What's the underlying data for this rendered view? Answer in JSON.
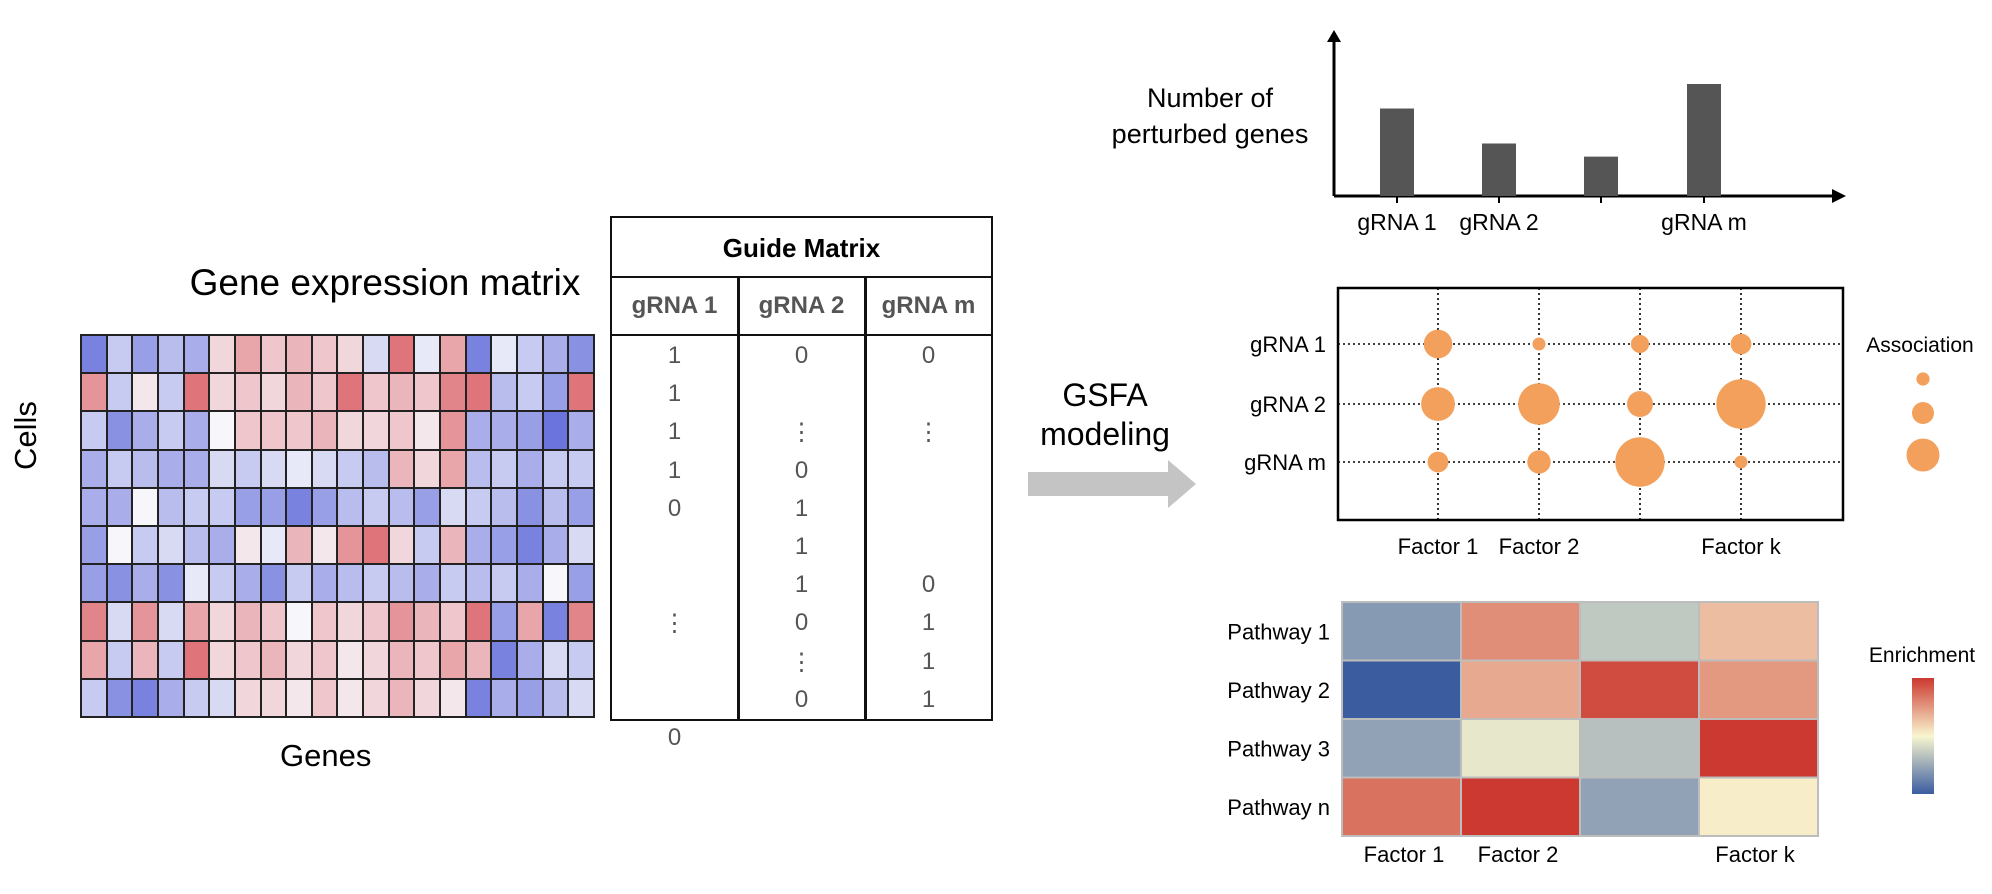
{
  "gene_expression": {
    "title": "Gene expression matrix",
    "row_label": "Cells",
    "col_label": "Genes",
    "rows": 10,
    "cols": 20,
    "colors": {
      "low": "#5a65d8",
      "mid": "#f7f7fb",
      "high": "#d9545a"
    },
    "values": [
      [
        -0.8,
        -0.3,
        -0.6,
        -0.4,
        -0.5,
        0.2,
        0.5,
        0.3,
        0.4,
        0.3,
        0.2,
        -0.2,
        0.8,
        -0.1,
        0.5,
        -0.8,
        -0.1,
        -0.3,
        -0.5,
        -0.7
      ],
      [
        0.6,
        -0.3,
        0.1,
        -0.3,
        0.8,
        0.2,
        0.3,
        0.2,
        0.4,
        0.3,
        0.8,
        0.3,
        0.4,
        0.3,
        0.7,
        0.8,
        -0.4,
        -0.3,
        -0.6,
        0.8
      ],
      [
        -0.3,
        -0.7,
        -0.5,
        -0.3,
        -0.5,
        0.0,
        0.3,
        0.3,
        0.3,
        0.4,
        0.2,
        0.2,
        0.3,
        0.1,
        0.6,
        -0.5,
        -0.5,
        -0.6,
        -0.9,
        -0.5
      ],
      [
        -0.5,
        -0.3,
        -0.4,
        -0.5,
        -0.5,
        -0.2,
        -0.3,
        -0.2,
        -0.1,
        -0.2,
        -0.3,
        -0.4,
        0.4,
        0.2,
        0.5,
        -0.4,
        -0.3,
        -0.5,
        -0.3,
        -0.3
      ],
      [
        -0.5,
        -0.5,
        0.0,
        -0.4,
        -0.3,
        -0.3,
        -0.6,
        -0.6,
        -0.8,
        -0.6,
        -0.4,
        -0.3,
        -0.4,
        -0.6,
        -0.2,
        -0.3,
        -0.4,
        -0.7,
        -0.4,
        -0.6
      ],
      [
        -0.6,
        0.0,
        -0.3,
        -0.2,
        -0.4,
        -0.5,
        0.1,
        -0.1,
        0.4,
        0.1,
        0.6,
        0.8,
        0.2,
        -0.3,
        0.4,
        -0.5,
        -0.6,
        -0.8,
        -0.5,
        -0.2
      ],
      [
        -0.6,
        -0.7,
        -0.5,
        -0.7,
        -0.1,
        -0.3,
        -0.5,
        -0.7,
        -0.3,
        -0.5,
        -0.4,
        -0.3,
        -0.4,
        -0.5,
        -0.3,
        -0.4,
        -0.3,
        -0.5,
        0.0,
        -0.6
      ],
      [
        0.7,
        -0.2,
        0.6,
        -0.2,
        0.5,
        0.2,
        0.4,
        0.3,
        0.0,
        0.3,
        0.2,
        0.3,
        0.6,
        0.4,
        0.3,
        0.8,
        -0.6,
        0.5,
        -0.8,
        0.7
      ],
      [
        0.5,
        -0.3,
        0.4,
        -0.3,
        0.8,
        0.2,
        0.3,
        0.4,
        0.2,
        0.3,
        0.1,
        0.2,
        0.4,
        0.3,
        0.5,
        0.4,
        -0.8,
        -0.5,
        -0.2,
        -0.3
      ],
      [
        -0.3,
        -0.7,
        -0.8,
        -0.5,
        -0.3,
        -0.2,
        0.2,
        0.2,
        0.1,
        0.3,
        0.1,
        0.2,
        0.4,
        0.2,
        0.1,
        -0.8,
        -0.5,
        -0.6,
        -0.4,
        -0.2
      ]
    ]
  },
  "guide_matrix": {
    "title": "Guide Matrix",
    "headers": [
      "gRNA 1",
      "gRNA 2",
      "gRNA m"
    ],
    "columns": [
      [
        "1",
        "1",
        "1",
        "1",
        "0",
        "",
        "",
        "⋮",
        "",
        "",
        "0"
      ],
      [
        "0",
        "",
        "⋮",
        "0",
        "1",
        "1",
        "1",
        "0",
        "⋮",
        "0"
      ],
      [
        "0",
        "",
        "⋮",
        "",
        "",
        "",
        "0",
        "1",
        "1",
        "1"
      ]
    ]
  },
  "arrow_label": {
    "line1": "GSFA",
    "line2": "modeling"
  },
  "bar_panel": {
    "ylabel_line1": "Number of",
    "ylabel_line2": "perturbed genes",
    "bar_color": "#555555",
    "bars": [
      {
        "label": "gRNA 1",
        "value": 100
      },
      {
        "label": "gRNA 2",
        "value": 60
      },
      {
        "label": "",
        "value": 45
      },
      {
        "label": "gRNA m",
        "value": 128
      }
    ],
    "ymax": 160
  },
  "dot_panel": {
    "rows": [
      "gRNA 1",
      "gRNA 2",
      "gRNA m"
    ],
    "cols": [
      "Factor 1",
      "Factor 2",
      "",
      "Factor k"
    ],
    "dot_color": "#f3a05c",
    "sizes": [
      [
        0.55,
        0.25,
        0.35,
        0.4
      ],
      [
        0.65,
        0.8,
        0.5,
        0.95
      ],
      [
        0.4,
        0.45,
        0.95,
        0.25
      ]
    ],
    "legend_title": "Association",
    "legend_sizes": [
      0.3,
      0.5,
      0.75
    ]
  },
  "pathway_panel": {
    "rows": [
      "Pathway 1",
      "Pathway 2",
      "Pathway 3",
      "Pathway n"
    ],
    "cols": [
      "Factor 1",
      "Factor 2",
      "",
      "Factor k"
    ],
    "values": [
      [
        -0.6,
        0.55,
        -0.3,
        0.3
      ],
      [
        -1.0,
        0.4,
        0.9,
        0.5
      ],
      [
        -0.55,
        -0.1,
        -0.35,
        1.0
      ],
      [
        0.7,
        1.0,
        -0.55,
        0.05
      ]
    ],
    "legend_title": "Enrichment",
    "colors": {
      "low": "#3b5da0",
      "mid": "#f9f6d0",
      "high": "#cc3930"
    }
  }
}
